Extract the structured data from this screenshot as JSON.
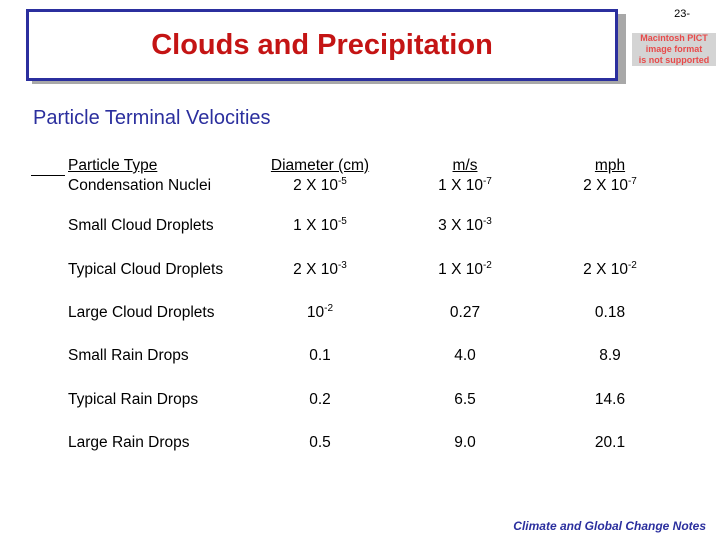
{
  "slide_number": "23-",
  "title": "Clouds and Precipitation",
  "pict_placeholder": {
    "line1": "Macintosh PICT",
    "line2": "image format",
    "line3": "is not supported"
  },
  "subtitle": "Particle Terminal Velocities",
  "table": {
    "headers": [
      "Particle Type",
      "Diameter (cm)",
      "m/s",
      "mph"
    ],
    "rows": [
      {
        "type": "Condensation Nuclei",
        "diameter": {
          "base": "2 X 10",
          "exp": "-5"
        },
        "ms": {
          "base": "1 X 10",
          "exp": "-7"
        },
        "mph": {
          "base": "2 X 10",
          "exp": "-7"
        }
      },
      {
        "type": "Small Cloud Droplets",
        "diameter": {
          "base": "1 X 10",
          "exp": "-5"
        },
        "ms": {
          "base": "3 X 10",
          "exp": "-3"
        },
        "mph": {
          "base": "",
          "exp": ""
        }
      },
      {
        "type": "Typical Cloud Droplets",
        "diameter": {
          "base": "2 X 10",
          "exp": "-3"
        },
        "ms": {
          "base": "1 X 10",
          "exp": "-2"
        },
        "mph": {
          "base": "2 X 10",
          "exp": "-2"
        }
      },
      {
        "type": "Large Cloud Droplets",
        "diameter": {
          "base": "10",
          "exp": "-2"
        },
        "ms": {
          "base": "0.27",
          "exp": ""
        },
        "mph": {
          "base": "0.18",
          "exp": ""
        }
      },
      {
        "type": "Small Rain  Drops",
        "diameter": {
          "base": "0.1",
          "exp": ""
        },
        "ms": {
          "base": "4.0",
          "exp": ""
        },
        "mph": {
          "base": "8.9",
          "exp": ""
        }
      },
      {
        "type": "Typical Rain Drops",
        "diameter": {
          "base": "0.2",
          "exp": ""
        },
        "ms": {
          "base": "6.5",
          "exp": ""
        },
        "mph": {
          "base": "14.6",
          "exp": ""
        }
      },
      {
        "type": "Large Rain Drops",
        "diameter": {
          "base": "0.5",
          "exp": ""
        },
        "ms": {
          "base": "9.0",
          "exp": ""
        },
        "mph": {
          "base": "20.1",
          "exp": ""
        }
      }
    ]
  },
  "footer": "Climate and Global Change Notes",
  "colors": {
    "title_red": "#c41414",
    "accent_blue": "#2b2f9e"
  }
}
